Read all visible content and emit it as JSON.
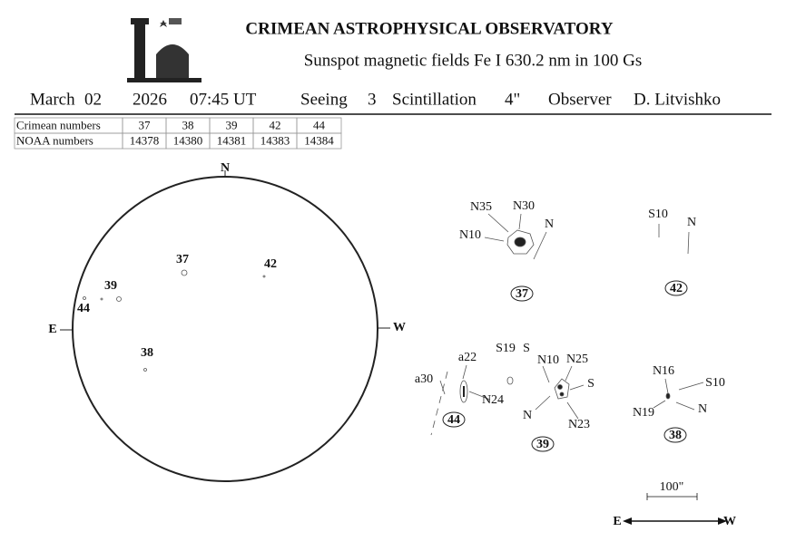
{
  "header": {
    "title": "CRIMEAN ASTROPHYSICAL OBSERVATORY",
    "subtitle": "Sunspot  magnetic  fields  Fe I 630.2 nm in 100 Gs"
  },
  "observation": {
    "month": "March",
    "day": "02",
    "year": "2026",
    "time": "07:45 UT",
    "seeing_label": "Seeing",
    "seeing": "3",
    "scintillation_label": "Scintillation",
    "scintillation": "4\"",
    "observer_label": "Observer",
    "observer": "D. Litvishko"
  },
  "table": {
    "rows": [
      [
        "Crimean numbers",
        "37",
        "38",
        "39",
        "42",
        "44"
      ],
      [
        "NOAA numbers",
        "14378",
        "14380",
        "14381",
        "14383",
        "14384"
      ]
    ]
  },
  "disk": {
    "north": "N",
    "east": "E",
    "west": "W",
    "regions": [
      "37",
      "42",
      "39",
      "44",
      "38"
    ]
  },
  "groups": [
    {
      "number": "37",
      "labels": [
        "N35",
        "N30",
        "N10",
        "N"
      ]
    },
    {
      "number": "42",
      "labels": [
        "S10",
        "N"
      ]
    },
    {
      "number": "44",
      "labels": [
        "a22",
        "a30",
        "N24"
      ]
    },
    {
      "number": "39",
      "labels": [
        "S19",
        "S",
        "N10",
        "N25",
        "S",
        "N",
        "N23"
      ]
    },
    {
      "number": "38",
      "labels": [
        "N16",
        "S10",
        "N19",
        "N"
      ]
    }
  ],
  "scale": {
    "label": "100\"",
    "east": "E",
    "west": "W"
  }
}
